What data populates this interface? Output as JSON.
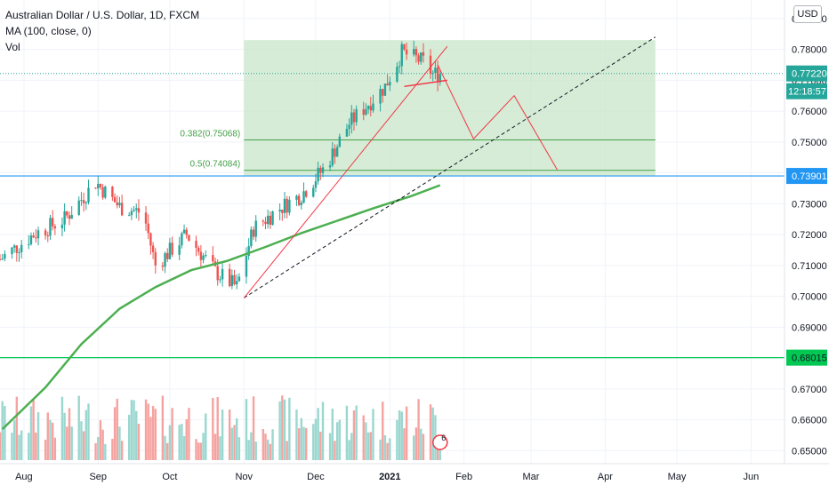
{
  "header": {
    "symbol_title": "Australian Dollar / U.S. Dollar, 1D, FXCM",
    "indicator_label": "MA (100, close, 0)",
    "volume_label": "Vol",
    "currency": "USD"
  },
  "price_axis": {
    "ticks": [
      "0.65000",
      "0.66000",
      "0.67000",
      "0.68000",
      "0.69000",
      "0.70000",
      "0.71000",
      "0.72000",
      "0.73000",
      "0.74000",
      "0.75000",
      "0.76000",
      "0.77000",
      "0.78000",
      "0.79000"
    ],
    "last_price_label": "0.77220",
    "countdown_label": "12:18:57",
    "cyan_level_label": "0.73901",
    "green_level_label": "0.68015"
  },
  "time_axis": {
    "ticks": [
      "Aug",
      "Sep",
      "Oct",
      "Nov",
      "Dec",
      "2021",
      "Feb",
      "Mar",
      "Apr",
      "May",
      "Jun"
    ]
  },
  "fib_labels": {
    "level_382": "0.382(0.75068)",
    "level_5": "0.5(0.74084)"
  },
  "event_badge": "6",
  "colors": {
    "up_candle": "#26a69a",
    "down_candle": "#ef5350",
    "up_volume": "#9ad7cf",
    "down_volume": "#f5a3a0",
    "ma_line": "#4caf50",
    "zone_fill": "#c8e6c9",
    "cyan_line": "#2196f3",
    "green_line": "#00c853",
    "trend_red": "#f23645",
    "last_price_bg": "#26a69a",
    "grid": "#f0f3fa"
  },
  "chart_data": {
    "type": "candlestick",
    "title": "Australian Dollar / U.S. Dollar, 1D, FXCM",
    "price_range": [
      0.6435,
      0.796
    ],
    "x_range": [
      "2020-07-22",
      "2021-06-15"
    ],
    "series": [
      {
        "name": "MA (100, close, 0)",
        "values": [
          {
            "x": "2020-07-23",
            "y": 0.657
          },
          {
            "x": "2020-08-10",
            "y": 0.6705
          },
          {
            "x": "2020-08-25",
            "y": 0.6845
          },
          {
            "x": "2020-09-10",
            "y": 0.696
          },
          {
            "x": "2020-09-25",
            "y": 0.703
          },
          {
            "x": "2020-10-10",
            "y": 0.7085
          },
          {
            "x": "2020-10-25",
            "y": 0.7115
          },
          {
            "x": "2020-11-10",
            "y": 0.716
          },
          {
            "x": "2020-11-25",
            "y": 0.7205
          },
          {
            "x": "2020-12-10",
            "y": 0.7245
          },
          {
            "x": "2020-12-25",
            "y": 0.7285
          },
          {
            "x": "2021-01-10",
            "y": 0.7325
          },
          {
            "x": "2021-01-22",
            "y": 0.736
          }
        ]
      }
    ],
    "horizontal_levels": [
      {
        "price": 0.7722,
        "style": "dotted"
      },
      {
        "price": 0.73901,
        "style": "solid"
      },
      {
        "price": 0.68015,
        "style": "solid"
      }
    ],
    "fib_zone": {
      "from": "2020-11-01",
      "to": "2021-04-22",
      "top": 0.783,
      "bottom": 0.739,
      "levels": [
        {
          "ratio": 0.382,
          "price": 0.75068
        },
        {
          "ratio": 0.5,
          "price": 0.74084
        }
      ]
    },
    "volume_count": 150
  }
}
